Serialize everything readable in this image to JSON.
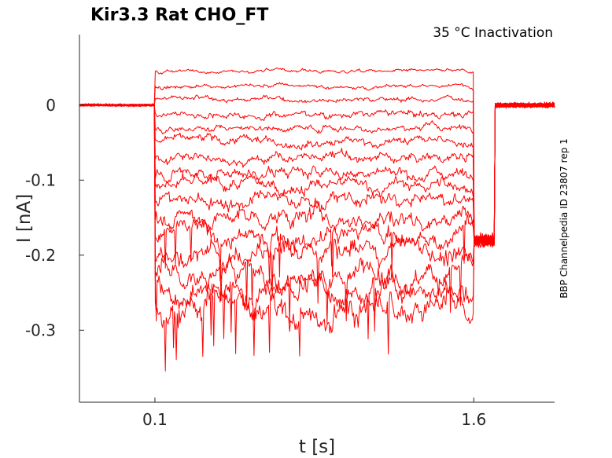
{
  "chart_data": {
    "type": "line",
    "title": "Kir3.3  Rat  CHO_FT",
    "subtitle": "35 °C  Inactivation",
    "xlabel": "t [s]",
    "ylabel": "I [nA]",
    "side_note": "BBP Channelpedia ID 23807 rep 1",
    "xlim": [
      -0.255,
      1.98
    ],
    "ylim": [
      -0.396,
      0.094
    ],
    "x_ticks": [
      0.1,
      1.6
    ],
    "x_tick_labels": [
      "0.1",
      "1.6"
    ],
    "y_ticks": [
      0,
      -0.1,
      -0.2,
      -0.3
    ],
    "y_tick_labels": [
      "0",
      "-0.1",
      "-0.2",
      "-0.3"
    ],
    "grid": false,
    "legend": "none",
    "trace_color": "#ff0000",
    "pulse_start": 0.1,
    "pulse_end": 1.6,
    "holding_current": 0.0,
    "tail_current": -0.18,
    "series": [
      {
        "step_level": 0.045,
        "noise": 0.002
      },
      {
        "step_level": 0.025,
        "noise": 0.0025
      },
      {
        "step_level": 0.008,
        "noise": 0.003
      },
      {
        "step_level": -0.012,
        "noise": 0.004
      },
      {
        "step_level": -0.03,
        "noise": 0.004
      },
      {
        "step_level": -0.048,
        "noise": 0.005
      },
      {
        "step_level": -0.07,
        "noise": 0.006
      },
      {
        "step_level": -0.09,
        "noise": 0.007
      },
      {
        "step_level": -0.108,
        "noise": 0.008
      },
      {
        "step_level": -0.128,
        "noise": 0.009
      },
      {
        "step_level": -0.15,
        "noise": 0.011
      },
      {
        "step_level": -0.175,
        "noise": 0.012
      },
      {
        "step_level": -0.2,
        "noise": 0.013
      },
      {
        "step_level": -0.222,
        "noise": 0.014
      },
      {
        "step_level": -0.245,
        "noise": 0.015
      },
      {
        "step_level": -0.265,
        "noise": 0.016
      }
    ]
  }
}
